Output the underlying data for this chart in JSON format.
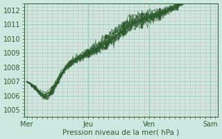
{
  "bg_color": "#cce8e0",
  "grid_major_color": "#aaccc0",
  "grid_minor_color": "#d4b0b0",
  "line_color": "#2d5a2d",
  "xlabel": "Pression niveau de la mer( hPa )",
  "xtick_labels": [
    "Mer",
    "Jeu",
    "Ven",
    "Sam"
  ],
  "xtick_positions": [
    0,
    48,
    96,
    144
  ],
  "ylim": [
    1004.5,
    1012.5
  ],
  "yticks": [
    1005,
    1006,
    1007,
    1008,
    1009,
    1010,
    1011,
    1012
  ],
  "xlim": [
    -2,
    150
  ],
  "vline_positions": [
    0,
    48,
    96,
    144
  ]
}
